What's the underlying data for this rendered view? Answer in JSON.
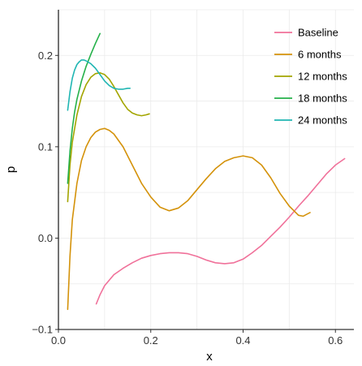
{
  "chart_data": {
    "type": "line",
    "xlabel": "x",
    "ylabel": "p",
    "xlim": [
      0.0,
      0.64
    ],
    "ylim": [
      -0.1,
      0.25
    ],
    "x_ticks": [
      0.0,
      0.2,
      0.4,
      0.6
    ],
    "x_tick_labels": [
      "0.0",
      "0.2",
      "0.4",
      "0.6"
    ],
    "y_ticks": [
      -0.1,
      0.0,
      0.1,
      0.2
    ],
    "y_tick_labels": [
      "−0.1",
      "0.0",
      "0.1",
      "0.2"
    ],
    "grid": true,
    "legend_position": "top-right",
    "series": [
      {
        "name": "Baseline",
        "color": "#F0719A",
        "x": [
          0.082,
          0.09,
          0.1,
          0.12,
          0.14,
          0.16,
          0.18,
          0.2,
          0.22,
          0.24,
          0.26,
          0.28,
          0.3,
          0.32,
          0.34,
          0.36,
          0.38,
          0.4,
          0.42,
          0.44,
          0.46,
          0.48,
          0.5,
          0.52,
          0.54,
          0.56,
          0.58,
          0.6,
          0.62
        ],
        "y": [
          -0.072,
          -0.062,
          -0.052,
          -0.04,
          -0.033,
          -0.027,
          -0.022,
          -0.019,
          -0.017,
          -0.016,
          -0.016,
          -0.017,
          -0.02,
          -0.024,
          -0.027,
          -0.028,
          -0.027,
          -0.023,
          -0.016,
          -0.008,
          0.002,
          0.012,
          0.023,
          0.035,
          0.046,
          0.058,
          0.07,
          0.08,
          0.087
        ]
      },
      {
        "name": "6 months",
        "color": "#D4920A",
        "x": [
          0.02,
          0.025,
          0.03,
          0.04,
          0.05,
          0.06,
          0.07,
          0.08,
          0.09,
          0.1,
          0.11,
          0.12,
          0.14,
          0.16,
          0.18,
          0.2,
          0.22,
          0.24,
          0.26,
          0.28,
          0.3,
          0.32,
          0.34,
          0.36,
          0.38,
          0.4,
          0.42,
          0.44,
          0.46,
          0.48,
          0.5,
          0.52,
          0.53,
          0.545
        ],
        "y": [
          -0.078,
          -0.02,
          0.02,
          0.06,
          0.085,
          0.1,
          0.11,
          0.116,
          0.119,
          0.12,
          0.118,
          0.114,
          0.1,
          0.08,
          0.06,
          0.045,
          0.034,
          0.03,
          0.033,
          0.041,
          0.053,
          0.065,
          0.076,
          0.084,
          0.088,
          0.09,
          0.088,
          0.08,
          0.066,
          0.049,
          0.035,
          0.025,
          0.024,
          0.028
        ]
      },
      {
        "name": "12 months",
        "color": "#A3A500",
        "x": [
          0.02,
          0.025,
          0.03,
          0.04,
          0.05,
          0.06,
          0.07,
          0.08,
          0.09,
          0.1,
          0.11,
          0.12,
          0.13,
          0.14,
          0.15,
          0.16,
          0.17,
          0.18,
          0.19,
          0.197
        ],
        "y": [
          0.04,
          0.08,
          0.105,
          0.135,
          0.155,
          0.168,
          0.176,
          0.18,
          0.181,
          0.179,
          0.174,
          0.166,
          0.157,
          0.148,
          0.141,
          0.137,
          0.135,
          0.134,
          0.135,
          0.136
        ]
      },
      {
        "name": "18 months",
        "color": "#25B14A",
        "x": [
          0.02,
          0.025,
          0.03,
          0.035,
          0.04,
          0.05,
          0.06,
          0.07,
          0.08,
          0.09
        ],
        "y": [
          0.06,
          0.095,
          0.12,
          0.138,
          0.152,
          0.172,
          0.188,
          0.201,
          0.213,
          0.224
        ]
      },
      {
        "name": "24 months",
        "color": "#20B6B3",
        "x": [
          0.02,
          0.025,
          0.03,
          0.035,
          0.04,
          0.045,
          0.05,
          0.055,
          0.06,
          0.07,
          0.08,
          0.09,
          0.1,
          0.11,
          0.12,
          0.13,
          0.14,
          0.15,
          0.155
        ],
        "y": [
          0.14,
          0.16,
          0.175,
          0.184,
          0.19,
          0.193,
          0.195,
          0.195,
          0.194,
          0.191,
          0.186,
          0.179,
          0.172,
          0.167,
          0.164,
          0.163,
          0.163,
          0.164,
          0.164
        ]
      }
    ]
  }
}
